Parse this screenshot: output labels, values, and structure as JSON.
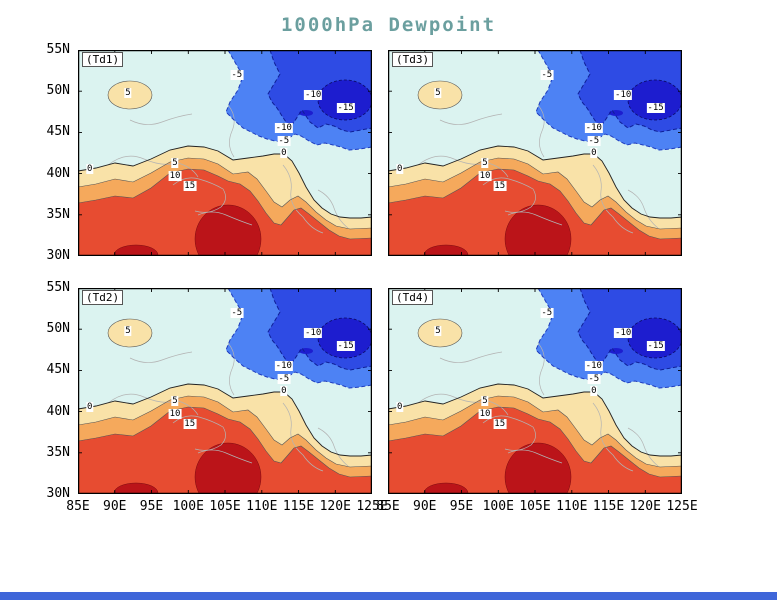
{
  "chart_data": {
    "type": "heatmap",
    "variant": "filled-contour-map-2x2-panels",
    "title": "1000hPa Dewpoint",
    "panels": [
      {
        "id": "td1",
        "label": "(Td1)",
        "grid": "row1-col1"
      },
      {
        "id": "td3",
        "label": "(Td3)",
        "grid": "row1-col2"
      },
      {
        "id": "td2",
        "label": "(Td2)",
        "grid": "row2-col1"
      },
      {
        "id": "td4",
        "label": "(Td4)",
        "grid": "row2-col2"
      }
    ],
    "x_axis": {
      "ticks": [
        "85E",
        "90E",
        "95E",
        "100E",
        "105E",
        "110E",
        "115E",
        "120E",
        "125E"
      ],
      "range_deg_east": [
        85,
        125
      ]
    },
    "y_axis": {
      "ticks": [
        "55N",
        "50N",
        "45N",
        "40N",
        "35N",
        "30N"
      ],
      "range_deg_north": [
        30,
        55
      ]
    },
    "contour_levels": [
      -15,
      -10,
      -5,
      0,
      5,
      10,
      15
    ],
    "contour_labels": [
      {
        "text": "5",
        "x": 17,
        "y": 21
      },
      {
        "text": "-5",
        "x": 54,
        "y": 12
      },
      {
        "text": "-10",
        "x": 80,
        "y": 22
      },
      {
        "text": "-15",
        "x": 91,
        "y": 28
      },
      {
        "text": "-10",
        "x": 70,
        "y": 38
      },
      {
        "text": "-5",
        "x": 70,
        "y": 44
      },
      {
        "text": "0",
        "x": 70,
        "y": 50
      },
      {
        "text": "0",
        "x": 4,
        "y": 58
      },
      {
        "text": "5",
        "x": 33,
        "y": 55
      },
      {
        "text": "10",
        "x": 33,
        "y": 61
      },
      {
        "text": "15",
        "x": 38,
        "y": 66
      }
    ],
    "colors": {
      "below_-15": "#1d1dcf",
      "-15_-10": "#2e4be4",
      "-10_-5": "#4d82f4",
      "-5_0": "#dbf3f0",
      "0_5": "#f9e2a8",
      "5_10": "#f5a95c",
      "10_15": "#e74c31",
      "above_15": "#bb1419",
      "map_lines": "#b3b3b3",
      "title_color": "#6b9f9f",
      "bottom_strip": "#3f66d9"
    }
  }
}
